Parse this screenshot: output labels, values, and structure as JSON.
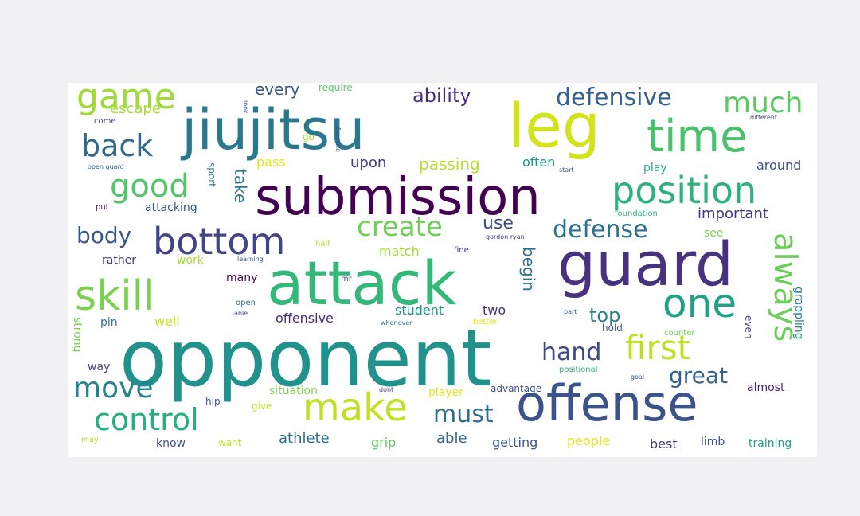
{
  "words": [
    {
      "text": "opponent",
      "color": "#21918c"
    },
    {
      "text": "attack",
      "color": "#35b779"
    },
    {
      "text": "jiujitsu",
      "color": "#2a788e"
    },
    {
      "text": "submission",
      "color": "#440154"
    },
    {
      "text": "leg",
      "color": "#d2e21b"
    },
    {
      "text": "guard",
      "color": "#46327e"
    },
    {
      "text": "offense",
      "color": "#3b528b"
    },
    {
      "text": "time",
      "color": "#4ac16d"
    },
    {
      "text": "make",
      "color": "#c2df23"
    },
    {
      "text": "skill",
      "color": "#7ad151"
    },
    {
      "text": "one",
      "color": "#1fa187"
    },
    {
      "text": "position",
      "color": "#2db27d"
    },
    {
      "text": "bottom",
      "color": "#414487"
    },
    {
      "text": "game",
      "color": "#a0da39"
    },
    {
      "text": "good",
      "color": "#52c569"
    },
    {
      "text": "back",
      "color": "#31688e"
    },
    {
      "text": "control",
      "color": "#29af7f"
    },
    {
      "text": "move",
      "color": "#26828e"
    },
    {
      "text": "first",
      "color": "#bddf26"
    },
    {
      "text": "always",
      "color": "#6ccd5a"
    },
    {
      "text": "much",
      "color": "#5ec962"
    },
    {
      "text": "defensive",
      "color": "#355f8d"
    },
    {
      "text": "defense",
      "color": "#2c728e"
    },
    {
      "text": "create",
      "color": "#6ece58"
    },
    {
      "text": "body",
      "color": "#39568c"
    },
    {
      "text": "must",
      "color": "#2e6e8e"
    },
    {
      "text": "hand",
      "color": "#3e4989"
    },
    {
      "text": "great",
      "color": "#33628d"
    },
    {
      "text": "top",
      "color": "#25848e"
    },
    {
      "text": "use",
      "color": "#3e4a89"
    },
    {
      "text": "ability",
      "color": "#472d7b"
    },
    {
      "text": "every",
      "color": "#38598c"
    },
    {
      "text": "escape",
      "color": "#a8db34"
    },
    {
      "text": "passing",
      "color": "#b5de2b"
    },
    {
      "text": "upon",
      "color": "#443983"
    },
    {
      "text": "often",
      "color": "#1f988b"
    },
    {
      "text": "take",
      "color": "#2a768e"
    },
    {
      "text": "important",
      "color": "#453781"
    },
    {
      "text": "pass",
      "color": "#e5e419"
    },
    {
      "text": "attacking",
      "color": "#365c8d"
    },
    {
      "text": "around",
      "color": "#3b528b"
    },
    {
      "text": "play",
      "color": "#22a884"
    },
    {
      "text": "see",
      "color": "#7ad151"
    },
    {
      "text": "rather",
      "color": "#443983"
    },
    {
      "text": "work",
      "color": "#a5db36"
    },
    {
      "text": "match",
      "color": "#a0da39"
    },
    {
      "text": "begin",
      "color": "#2d718e"
    },
    {
      "text": "many",
      "color": "#440154"
    },
    {
      "text": "offensive",
      "color": "#472c7a"
    },
    {
      "text": "student",
      "color": "#21918c"
    },
    {
      "text": "two",
      "color": "#46327e"
    },
    {
      "text": "well",
      "color": "#cae11f"
    },
    {
      "text": "pin",
      "color": "#2b758e"
    },
    {
      "text": "strong",
      "color": "#75d054"
    },
    {
      "text": "way",
      "color": "#414487"
    },
    {
      "text": "hold",
      "color": "#3d4e8a"
    },
    {
      "text": "even",
      "color": "#424186"
    },
    {
      "text": "grappling",
      "color": "#26828e"
    },
    {
      "text": "situation",
      "color": "#7fd34e"
    },
    {
      "text": "player",
      "color": "#e5e419"
    },
    {
      "text": "advantage",
      "color": "#3b528b"
    },
    {
      "text": "almost",
      "color": "#482173"
    },
    {
      "text": "give",
      "color": "#c0df25"
    },
    {
      "text": "hip",
      "color": "#3b528b"
    },
    {
      "text": "athlete",
      "color": "#2d708e"
    },
    {
      "text": "grip",
      "color": "#5ec962"
    },
    {
      "text": "able",
      "color": "#31688e"
    },
    {
      "text": "getting",
      "color": "#39568c"
    },
    {
      "text": "people",
      "color": "#e2e418"
    },
    {
      "text": "best",
      "color": "#453882"
    },
    {
      "text": "limb",
      "color": "#3c508b"
    },
    {
      "text": "training",
      "color": "#1f9e89"
    },
    {
      "text": "know",
      "color": "#3b528b"
    },
    {
      "text": "want",
      "color": "#c2df23"
    },
    {
      "text": "may",
      "color": "#b8de29"
    },
    {
      "text": "put",
      "color": "#481467"
    },
    {
      "text": "sport",
      "color": "#2a788e"
    },
    {
      "text": "come",
      "color": "#414487"
    },
    {
      "text": "go",
      "color": "#a8db34"
    },
    {
      "text": "mr",
      "color": "#3b528b"
    },
    {
      "text": "open",
      "color": "#2c728e"
    },
    {
      "text": "fine",
      "color": "#433d84"
    },
    {
      "text": "require",
      "color": "#5ec962"
    },
    {
      "text": "look",
      "color": "#3e4a89"
    },
    {
      "text": "favorite",
      "color": "#3b528b"
    },
    {
      "text": "start",
      "color": "#3b528b"
    },
    {
      "text": "different",
      "color": "#404588"
    },
    {
      "text": "open guard",
      "color": "#31688e"
    },
    {
      "text": "foundation",
      "color": "#2ab07f"
    },
    {
      "text": "gordon ryan",
      "color": "#46327e"
    },
    {
      "text": "half",
      "color": "#b5de2b"
    },
    {
      "text": "learning",
      "color": "#3b528b"
    },
    {
      "text": "whenever",
      "color": "#2c728e"
    },
    {
      "text": "better",
      "color": "#e5e419"
    },
    {
      "text": "part",
      "color": "#3b528b"
    },
    {
      "text": "counter",
      "color": "#75d054"
    },
    {
      "text": "positional",
      "color": "#2ab07f"
    },
    {
      "text": "goal",
      "color": "#3b528b"
    },
    {
      "text": "dont",
      "color": "#414487"
    },
    {
      "text": "able",
      "color": "#3b528b"
    }
  ]
}
